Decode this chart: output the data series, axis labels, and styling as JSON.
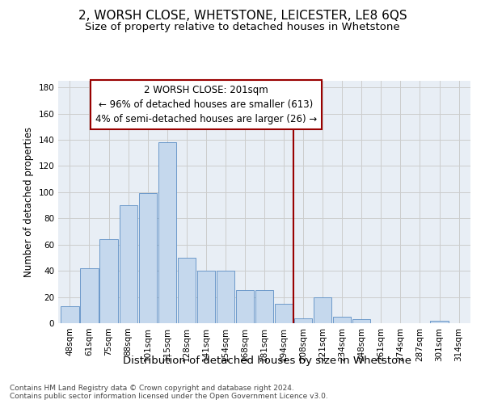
{
  "title": "2, WORSH CLOSE, WHETSTONE, LEICESTER, LE8 6QS",
  "subtitle": "Size of property relative to detached houses in Whetstone",
  "xlabel": "Distribution of detached houses by size in Whetstone",
  "ylabel": "Number of detached properties",
  "categories": [
    "48sqm",
    "61sqm",
    "75sqm",
    "88sqm",
    "101sqm",
    "115sqm",
    "128sqm",
    "141sqm",
    "154sqm",
    "168sqm",
    "181sqm",
    "194sqm",
    "208sqm",
    "221sqm",
    "234sqm",
    "248sqm",
    "261sqm",
    "274sqm",
    "287sqm",
    "301sqm",
    "314sqm"
  ],
  "values": [
    13,
    42,
    64,
    90,
    99,
    138,
    50,
    40,
    40,
    25,
    25,
    15,
    4,
    20,
    5,
    3,
    0,
    0,
    0,
    2,
    0
  ],
  "bar_color": "#c5d8ed",
  "bar_edge_color": "#5b8ec4",
  "highlight_line_color": "#990000",
  "annotation_line1": "2 WORSH CLOSE: 201sqm",
  "annotation_line2": "← 96% of detached houses are smaller (613)",
  "annotation_line3": "4% of semi-detached houses are larger (26) →",
  "annotation_box_edge_color": "#990000",
  "ylim": [
    0,
    185
  ],
  "yticks": [
    0,
    20,
    40,
    60,
    80,
    100,
    120,
    140,
    160,
    180
  ],
  "grid_color": "#cccccc",
  "background_color": "#e8eef5",
  "footer_text": "Contains HM Land Registry data © Crown copyright and database right 2024.\nContains public sector information licensed under the Open Government Licence v3.0.",
  "title_fontsize": 11,
  "subtitle_fontsize": 9.5,
  "xlabel_fontsize": 9.5,
  "ylabel_fontsize": 8.5,
  "tick_fontsize": 7.5,
  "annotation_fontsize": 8.5,
  "footer_fontsize": 6.5
}
